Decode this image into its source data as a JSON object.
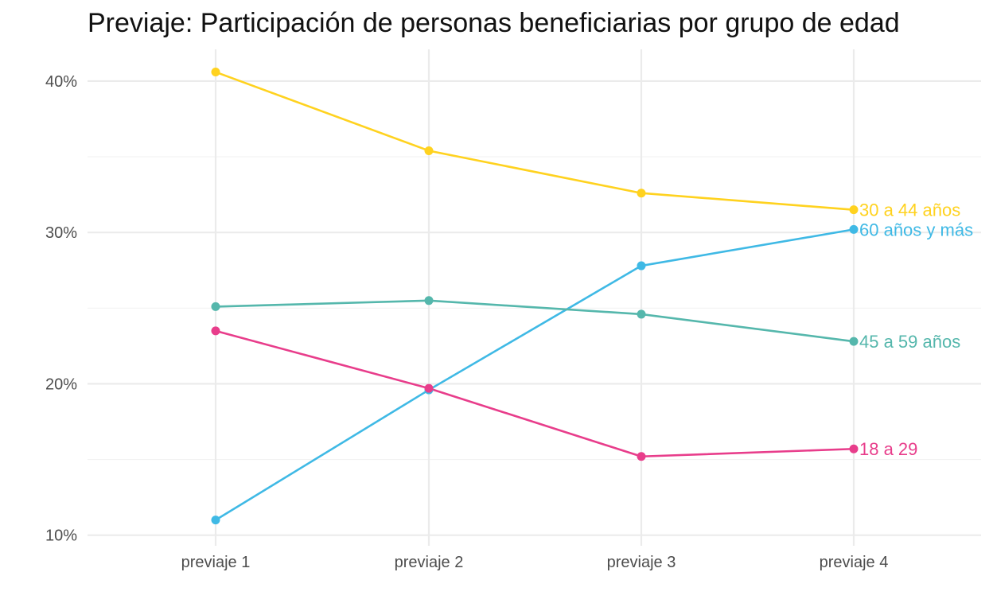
{
  "chart_data": {
    "type": "line",
    "title": "Previaje: Participación de personas beneficiarias por grupo de edad",
    "xlabel": "",
    "ylabel": "",
    "categories": [
      "previaje 1",
      "previaje 2",
      "previaje 3",
      "previaje 4"
    ],
    "ylim": [
      9.3,
      42.1
    ],
    "yticks": [
      10,
      20,
      30,
      40
    ],
    "ytick_labels": [
      "10%",
      "20%",
      "30%",
      "40%"
    ],
    "grid": true,
    "legend": "direct labels at line ends",
    "series": [
      {
        "name": "30 a 44 años",
        "color": "#FFD21F",
        "values": [
          40.6,
          35.4,
          32.6,
          31.5
        ]
      },
      {
        "name": "60 años y más",
        "color": "#3FB9E5",
        "values": [
          11.0,
          19.6,
          27.8,
          30.2
        ]
      },
      {
        "name": "45 a 59 años",
        "color": "#55B7AC",
        "values": [
          25.1,
          25.5,
          24.6,
          22.8
        ]
      },
      {
        "name": "18 a 29",
        "color": "#E83D8B",
        "values": [
          23.5,
          19.7,
          15.2,
          15.7
        ]
      }
    ]
  }
}
